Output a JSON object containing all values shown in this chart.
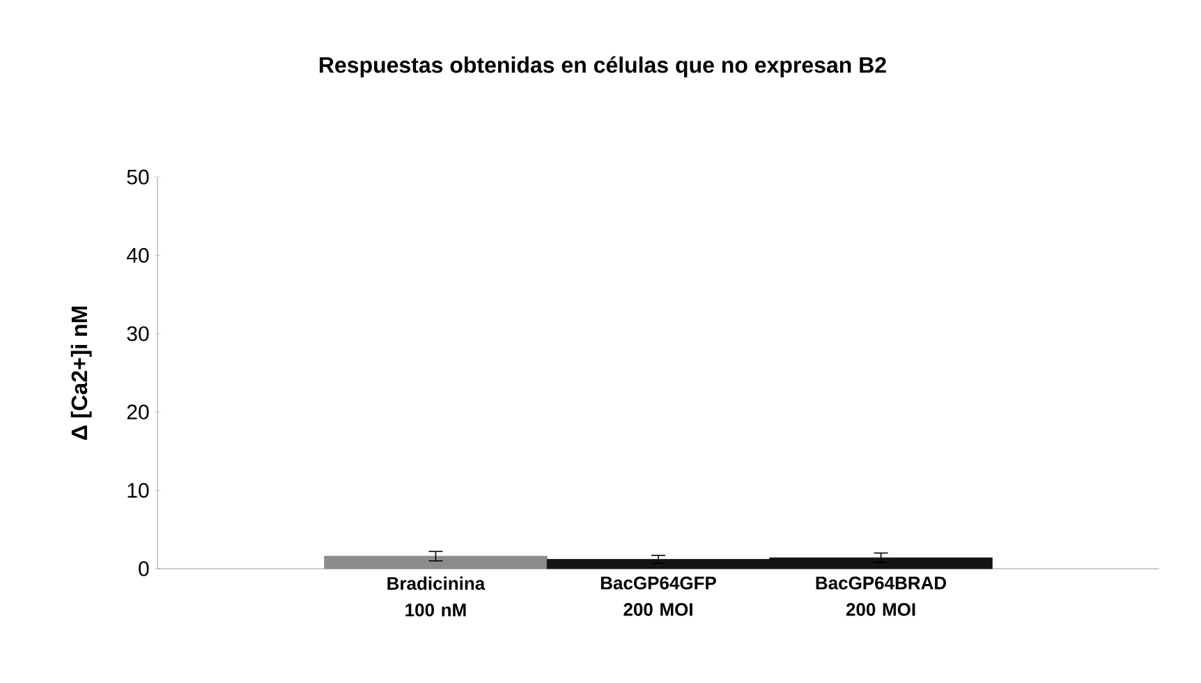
{
  "chart_data": {
    "type": "bar",
    "title": "Respuestas obtenidas en células que no expresan B2",
    "ylabel": "Δ [Ca2+]i nM",
    "categories": [
      "Bradicinina 100 nM",
      "BacGP64GFP 200 MOI",
      "BacGP64BRAD 200 MOI"
    ],
    "values": [
      1.6,
      1.2,
      1.4
    ],
    "errors": [
      0.6,
      0.5,
      0.6
    ],
    "colors": [
      "#8c8c8c",
      "#141414",
      "#141414"
    ],
    "ylim": [
      0,
      50
    ],
    "yticks": [
      0,
      10,
      20,
      30,
      40,
      50
    ],
    "grid": false
  }
}
